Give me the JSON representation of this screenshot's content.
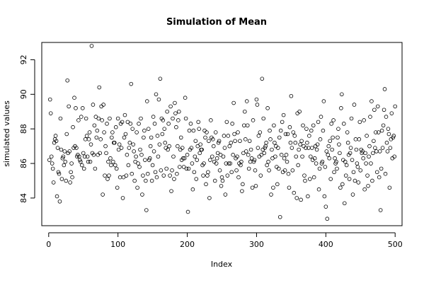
{
  "chart_data": {
    "type": "scatter",
    "title": "Simulation of Mean",
    "xlabel": "Index",
    "ylabel": "simulated values",
    "xlim": [
      -10,
      510
    ],
    "ylim": [
      82.4,
      93.0
    ],
    "x_ticks": [
      0,
      100,
      200,
      300,
      400,
      500
    ],
    "y_ticks": [
      84,
      86,
      88,
      90,
      92
    ],
    "marker": "open-circle",
    "grid": false,
    "legend": "none",
    "series": [
      {
        "x_start": 1,
        "x_step": 1,
        "values": [
          86.2,
          89.7,
          88.9,
          86.4,
          86.0,
          85.7,
          84.9,
          87.2,
          87.4,
          87.6,
          87.3,
          84.1,
          86.9,
          85.5,
          85.4,
          83.8,
          88.6,
          86.8,
          85.1,
          86.3,
          86.4,
          85.9,
          86.7,
          86.1,
          85.0,
          87.7,
          90.8,
          86.6,
          89.3,
          86.7,
          84.9,
          85.5,
          86.0,
          85.2,
          88.1,
          86.9,
          89.8,
          87.0,
          89.2,
          86.9,
          86.4,
          86.5,
          88.5,
          86.4,
          86.2,
          86.1,
          88.7,
          85.9,
          89.2,
          86.6,
          85.7,
          86.4,
          87.4,
          88.6,
          87.6,
          86.4,
          86.1,
          87.4,
          87.8,
          86.1,
          87.1,
          92.8,
          86.6,
          89.4,
          86.5,
          88.2,
          85.7,
          88.7,
          87.5,
          87.9,
          86.5,
          88.6,
          90.4,
          86.6,
          87.4,
          89.3,
          88.5,
          84.2,
          89.4,
          87.8,
          85.3,
          87.0,
          86.6,
          88.3,
          85.1,
          86.1,
          85.3,
          88.6,
          86.3,
          85.9,
          87.5,
          87.8,
          86.1,
          87.2,
          87.2,
          85.9,
          88.1,
          85.7,
          84.6,
          88.6
        ]
      },
      {
        "x_start": 101,
        "x_step": 1,
        "values": [
          86.8,
          87.1,
          85.2,
          88.3,
          86.9,
          88.4,
          84.0,
          85.2,
          87.5,
          88.8,
          87.7,
          85.3,
          86.5,
          88.4,
          85.9,
          86.9,
          87.2,
          88.3,
          90.6,
          85.4,
          88.0,
          87.1,
          86.7,
          85.0,
          86.1,
          86.4,
          87.8,
          84.6,
          86.0,
          88.3,
          85.8,
          86.8,
          88.6,
          86.5,
          84.2,
          85.3,
          87.5,
          87.9,
          86.2,
          85.0,
          83.3,
          89.6,
          85.4,
          88.0,
          86.2,
          86.3,
          87.0,
          87.5,
          85.0,
          85.9,
          88.7,
          86.7,
          88.3,
          85.5,
          90.0,
          85.2,
          87.6,
          86.4,
          89.7,
          87.1,
          90.9,
          85.6,
          88.6,
          87.7,
          88.5,
          85.3,
          88.0,
          87.2,
          86.9,
          85.7,
          89.0,
          86.8,
          88.3,
          87.0,
          85.3,
          89.3,
          84.4,
          85.6,
          88.6,
          86.4,
          85.1,
          89.5,
          88.9,
          88.1,
          85.4,
          87.0,
          88.5,
          89.0,
          85.8,
          86.8,
          87.5,
          86.2,
          86.9,
          86.3,
          85.8,
          86.3,
          89.8,
          88.6,
          85.7,
          86.5
        ]
      },
      {
        "x_start": 201,
        "x_step": 1,
        "values": [
          83.2,
          85.7,
          87.9,
          86.8,
          88.3,
          86.9,
          86.0,
          84.5,
          87.9,
          85.5,
          86.4,
          87.3,
          85.1,
          86.2,
          87.0,
          88.4,
          88.0,
          86.6,
          87.1,
          86.8,
          86.8,
          85.9,
          85.3,
          86.0,
          87.9,
          87.5,
          84.8,
          87.8,
          85.3,
          85.5,
          87.3,
          84.0,
          86.2,
          88.5,
          87.5,
          86.4,
          87.4,
          87.0,
          86.1,
          85.0,
          87.8,
          86.0,
          86.3,
          86.6,
          87.2,
          87.3,
          85.6,
          86.5,
          84.7,
          85.2,
          85.0,
          86.4,
          87.6,
          86.9,
          84.2,
          86.0,
          88.4,
          85.3,
          87.6,
          86.0,
          87.0,
          86.0,
          87.2,
          85.5,
          88.3,
          86.5,
          89.5,
          87.7,
          87.3,
          86.3,
          85.6,
          86.4,
          87.8,
          85.2,
          86.0,
          87.3,
          85.9,
          86.1,
          84.4,
          84.8,
          86.6,
          88.2,
          89.0,
          87.4,
          86.7,
          89.6,
          88.2,
          86.5,
          85.7,
          87.3,
          86.1,
          86.8,
          86.3,
          84.6,
          88.5,
          86.1,
          86.2,
          85.6,
          84.7,
          89.7
        ]
      },
      {
        "x_start": 301,
        "x_step": 1,
        "values": [
          89.4,
          86.9,
          87.6,
          86.4,
          87.8,
          85.3,
          86.5,
          90.9,
          86.8,
          88.6,
          86.6,
          86.9,
          87.0,
          87.2,
          85.9,
          89.2,
          86.1,
          85.6,
          87.9,
          87.4,
          84.2,
          86.8,
          86.3,
          84.6,
          88.2,
          87.2,
          86.4,
          87.0,
          85.8,
          84.8,
          86.9,
          85.7,
          87.5,
          82.9,
          87.9,
          86.5,
          88.4,
          85.5,
          88.8,
          86.3,
          85.6,
          87.7,
          86.5,
          86.1,
          87.7,
          85.4,
          84.6,
          88.1,
          87.2,
          89.9,
          86.9,
          85.6,
          87.8,
          84.3,
          87.6,
          87.2,
          86.4,
          84.0,
          88.9,
          85.9,
          86.8,
          89.0,
          87.1,
          83.9,
          87.3,
          86.4,
          88.2,
          87.0,
          85.3,
          85.0,
          86.9,
          88.0,
          87.2,
          84.1,
          86.9,
          87.6,
          85.1,
          86.4,
          87.9,
          86.9,
          86.2,
          88.2,
          85.2,
          86.3,
          87.0,
          86.0,
          86.8,
          87.1,
          88.4,
          84.5,
          85.7,
          87.4,
          88.7,
          86.0,
          86.1,
          87.9,
          89.6,
          84.1,
          85.8,
          83.5
        ]
      },
      {
        "x_start": 401,
        "x_step": 1,
        "values": [
          86.7,
          82.8,
          86.5,
          87.0,
          86.3,
          87.3,
          85.1,
          88.3,
          86.8,
          87.5,
          88.5,
          85.5,
          86.3,
          86.0,
          86.1,
          85.7,
          87.5,
          88.0,
          87.1,
          86.6,
          84.6,
          89.2,
          90.0,
          84.8,
          86.2,
          88.3,
          83.7,
          86.1,
          85.3,
          85.9,
          87.8,
          87.2,
          86.5,
          85.1,
          86.6,
          86.9,
          88.6,
          86.2,
          84.2,
          85.5,
          89.4,
          85.0,
          87.4,
          86.8,
          86.0,
          85.8,
          84.9,
          87.4,
          88.4,
          85.6,
          86.8,
          86.6,
          86.7,
          86.3,
          88.5,
          84.5,
          86.6,
          86.0,
          87.6,
          85.3,
          84.7,
          86.4,
          87.0,
          88.7,
          86.0,
          89.6,
          85.0,
          86.6,
          87.3,
          89.1,
          86.9,
          87.8,
          86.7,
          85.5,
          89.3,
          87.8,
          85.2,
          86.7,
          83.3,
          85.7,
          87.9,
          86.9,
          88.2,
          89.1,
          90.3,
          85.4,
          88.7,
          87.2,
          86.7,
          88.0,
          87.7,
          84.6,
          86.9,
          87.4,
          88.9,
          86.3,
          87.5,
          87.6,
          86.4,
          89.3
        ]
      }
    ]
  }
}
